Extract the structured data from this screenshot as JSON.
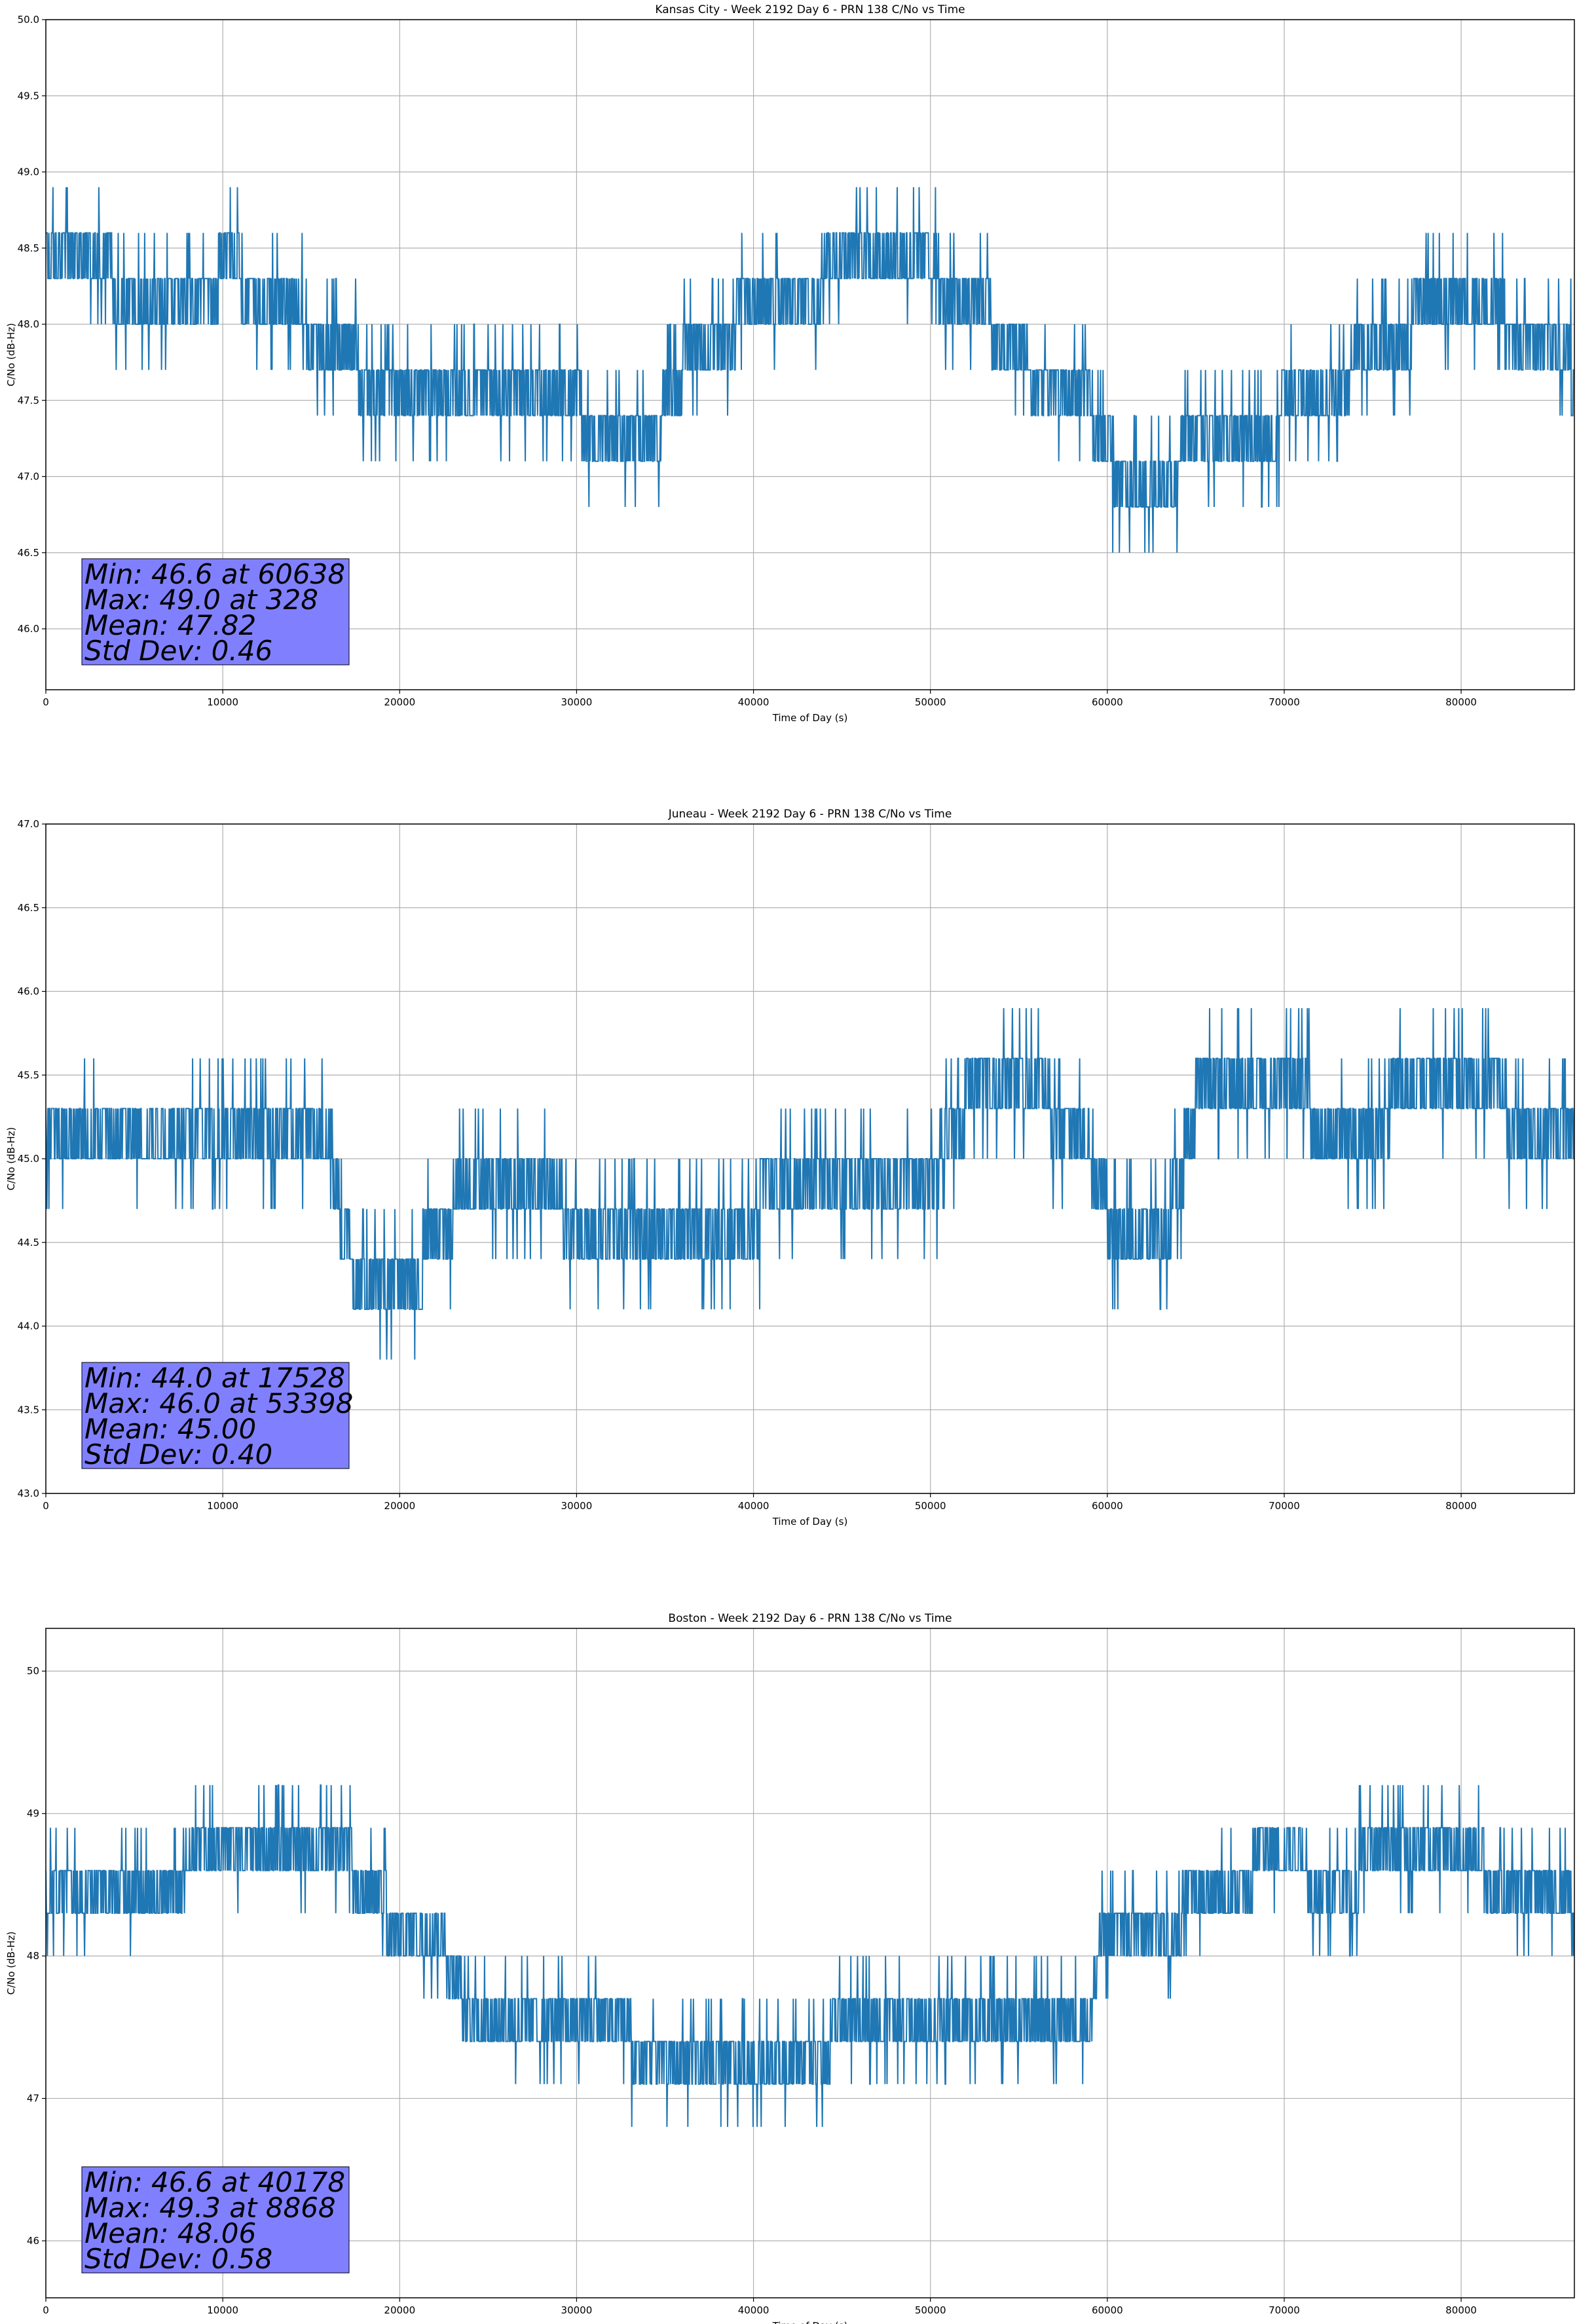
{
  "chart_data": [
    {
      "type": "line",
      "title": "Kansas City - Week 2192 Day 6 - PRN 138 C/No vs Time",
      "xlabel": "Time of Day (s)",
      "ylabel": "C/No (dB-Hz)",
      "xlim": [
        0,
        86400
      ],
      "ylim": [
        45.6,
        50.0
      ],
      "xticks": [
        0,
        10000,
        20000,
        30000,
        40000,
        50000,
        60000,
        70000,
        80000
      ],
      "xtick_labels": [
        "0",
        "10000",
        "20000",
        "30000",
        "40000",
        "50000",
        "60000",
        "70000",
        "80000"
      ],
      "yticks": [
        46.0,
        46.5,
        47.0,
        47.5,
        48.0,
        48.5,
        49.0,
        49.5,
        50.0
      ],
      "ytick_labels": [
        "46.0",
        "46.5",
        "47.0",
        "47.5",
        "48.0",
        "48.5",
        "49.0",
        "49.5",
        "50.0"
      ],
      "grid": true,
      "color": "#1f77b4",
      "stats": {
        "min": "Min: 46.6 at 60638",
        "max": "Max: 49.0 at 328",
        "mean": "Mean: 47.82",
        "std": "Std Dev: 0.46",
        "box_color": "#8080ff"
      },
      "trend": [
        {
          "x": 0,
          "y": 48.45
        },
        {
          "x": 3500,
          "y": 48.45
        },
        {
          "x": 4000,
          "y": 48.15
        },
        {
          "x": 9500,
          "y": 48.15
        },
        {
          "x": 10000,
          "y": 48.45
        },
        {
          "x": 11000,
          "y": 48.3
        },
        {
          "x": 14000,
          "y": 48.2
        },
        {
          "x": 15000,
          "y": 47.8
        },
        {
          "x": 17000,
          "y": 47.75
        },
        {
          "x": 19000,
          "y": 47.6
        },
        {
          "x": 22000,
          "y": 47.6
        },
        {
          "x": 25000,
          "y": 47.55
        },
        {
          "x": 28000,
          "y": 47.5
        },
        {
          "x": 30000,
          "y": 47.5
        },
        {
          "x": 31000,
          "y": 47.15
        },
        {
          "x": 34000,
          "y": 47.2
        },
        {
          "x": 35000,
          "y": 47.45
        },
        {
          "x": 36000,
          "y": 47.7
        },
        {
          "x": 38000,
          "y": 47.85
        },
        {
          "x": 40000,
          "y": 48.15
        },
        {
          "x": 43000,
          "y": 48.2
        },
        {
          "x": 45000,
          "y": 48.45
        },
        {
          "x": 48000,
          "y": 48.45
        },
        {
          "x": 50000,
          "y": 48.45
        },
        {
          "x": 51000,
          "y": 48.15
        },
        {
          "x": 53000,
          "y": 48.15
        },
        {
          "x": 54000,
          "y": 47.8
        },
        {
          "x": 57000,
          "y": 47.6
        },
        {
          "x": 59000,
          "y": 47.45
        },
        {
          "x": 60000,
          "y": 47.15
        },
        {
          "x": 61000,
          "y": 46.9
        },
        {
          "x": 63000,
          "y": 46.9
        },
        {
          "x": 64000,
          "y": 47.1
        },
        {
          "x": 66000,
          "y": 47.15
        },
        {
          "x": 69000,
          "y": 47.15
        },
        {
          "x": 70000,
          "y": 47.45
        },
        {
          "x": 73000,
          "y": 47.45
        },
        {
          "x": 74000,
          "y": 47.8
        },
        {
          "x": 76000,
          "y": 47.9
        },
        {
          "x": 79000,
          "y": 48.15
        },
        {
          "x": 82000,
          "y": 48.15
        },
        {
          "x": 83000,
          "y": 47.8
        },
        {
          "x": 86000,
          "y": 47.8
        },
        {
          "x": 86400,
          "y": 47.6
        }
      ]
    },
    {
      "type": "line",
      "title": "Juneau - Week 2192 Day 6 - PRN 138 C/No vs Time",
      "xlabel": "Time of Day (s)",
      "ylabel": "C/No (dB-Hz)",
      "xlim": [
        0,
        86400
      ],
      "ylim": [
        43.0,
        47.0
      ],
      "xticks": [
        0,
        10000,
        20000,
        30000,
        40000,
        50000,
        60000,
        70000,
        80000
      ],
      "xtick_labels": [
        "0",
        "10000",
        "20000",
        "30000",
        "40000",
        "50000",
        "60000",
        "70000",
        "80000"
      ],
      "yticks": [
        43.0,
        43.5,
        44.0,
        44.5,
        45.0,
        45.5,
        46.0,
        46.5,
        47.0
      ],
      "ytick_labels": [
        "43.0",
        "43.5",
        "44.0",
        "44.5",
        "45.0",
        "45.5",
        "46.0",
        "46.5",
        "47.0"
      ],
      "grid": true,
      "color": "#1f77b4",
      "stats": {
        "min": "Min: 44.0 at 17528",
        "max": "Max: 46.0 at 53398",
        "mean": "Mean: 45.00",
        "std": "Std Dev: 0.40",
        "box_color": "#8080ff"
      },
      "trend": [
        {
          "x": 0,
          "y": 45.15
        },
        {
          "x": 16000,
          "y": 45.15
        },
        {
          "x": 16500,
          "y": 44.8
        },
        {
          "x": 17000,
          "y": 44.45
        },
        {
          "x": 18000,
          "y": 44.25
        },
        {
          "x": 21000,
          "y": 44.3
        },
        {
          "x": 22000,
          "y": 44.6
        },
        {
          "x": 24000,
          "y": 44.8
        },
        {
          "x": 28000,
          "y": 44.85
        },
        {
          "x": 30000,
          "y": 44.6
        },
        {
          "x": 30500,
          "y": 44.45
        },
        {
          "x": 40000,
          "y": 44.45
        },
        {
          "x": 40500,
          "y": 44.8
        },
        {
          "x": 50000,
          "y": 44.85
        },
        {
          "x": 51000,
          "y": 45.15
        },
        {
          "x": 52000,
          "y": 45.3
        },
        {
          "x": 53000,
          "y": 45.5
        },
        {
          "x": 56500,
          "y": 45.5
        },
        {
          "x": 57000,
          "y": 45.15
        },
        {
          "x": 59000,
          "y": 45.0
        },
        {
          "x": 60000,
          "y": 44.7
        },
        {
          "x": 61000,
          "y": 44.45
        },
        {
          "x": 63000,
          "y": 44.45
        },
        {
          "x": 64000,
          "y": 44.8
        },
        {
          "x": 65000,
          "y": 45.3
        },
        {
          "x": 70000,
          "y": 45.45
        },
        {
          "x": 73000,
          "y": 45.15
        },
        {
          "x": 78000,
          "y": 45.4
        },
        {
          "x": 82000,
          "y": 45.45
        },
        {
          "x": 83000,
          "y": 45.15
        },
        {
          "x": 86400,
          "y": 45.15
        }
      ]
    },
    {
      "type": "line",
      "title": "Boston - Week 2192 Day 6 - PRN 138 C/No vs Time",
      "xlabel": "Time of Day (s)",
      "ylabel": "C/No (dB-Hz)",
      "xlim": [
        0,
        86400
      ],
      "ylim": [
        45.6,
        50.3
      ],
      "xticks": [
        0,
        10000,
        20000,
        30000,
        40000,
        50000,
        60000,
        70000,
        80000
      ],
      "xtick_labels": [
        "0",
        "10000",
        "20000",
        "30000",
        "40000",
        "50000",
        "60000",
        "70000",
        "80000"
      ],
      "yticks": [
        46,
        47,
        48,
        49,
        50
      ],
      "ytick_labels": [
        "46",
        "47",
        "48",
        "49",
        "50"
      ],
      "grid": true,
      "color": "#1f77b4",
      "stats": {
        "min": "Min: 46.6 at 40178",
        "max": "Max: 49.3 at 8868",
        "mean": "Mean: 48.06",
        "std": "Std Dev: 0.58",
        "box_color": "#8080ff"
      },
      "trend": [
        {
          "x": 0,
          "y": 48.45
        },
        {
          "x": 7500,
          "y": 48.45
        },
        {
          "x": 8000,
          "y": 48.8
        },
        {
          "x": 10000,
          "y": 48.85
        },
        {
          "x": 17000,
          "y": 48.8
        },
        {
          "x": 17500,
          "y": 48.45
        },
        {
          "x": 19000,
          "y": 48.45
        },
        {
          "x": 19500,
          "y": 48.15
        },
        {
          "x": 22500,
          "y": 48.15
        },
        {
          "x": 23000,
          "y": 47.8
        },
        {
          "x": 24000,
          "y": 47.6
        },
        {
          "x": 26000,
          "y": 47.5
        },
        {
          "x": 29000,
          "y": 47.5
        },
        {
          "x": 33000,
          "y": 47.45
        },
        {
          "x": 33500,
          "y": 47.15
        },
        {
          "x": 44000,
          "y": 47.15
        },
        {
          "x": 44500,
          "y": 47.45
        },
        {
          "x": 59000,
          "y": 47.45
        },
        {
          "x": 59500,
          "y": 48.15
        },
        {
          "x": 64000,
          "y": 48.15
        },
        {
          "x": 64500,
          "y": 48.45
        },
        {
          "x": 68000,
          "y": 48.45
        },
        {
          "x": 68500,
          "y": 48.8
        },
        {
          "x": 71000,
          "y": 48.8
        },
        {
          "x": 71500,
          "y": 48.45
        },
        {
          "x": 74000,
          "y": 48.45
        },
        {
          "x": 74500,
          "y": 48.8
        },
        {
          "x": 81000,
          "y": 48.8
        },
        {
          "x": 81500,
          "y": 48.45
        },
        {
          "x": 86000,
          "y": 48.45
        },
        {
          "x": 86400,
          "y": 48.15
        }
      ]
    }
  ]
}
